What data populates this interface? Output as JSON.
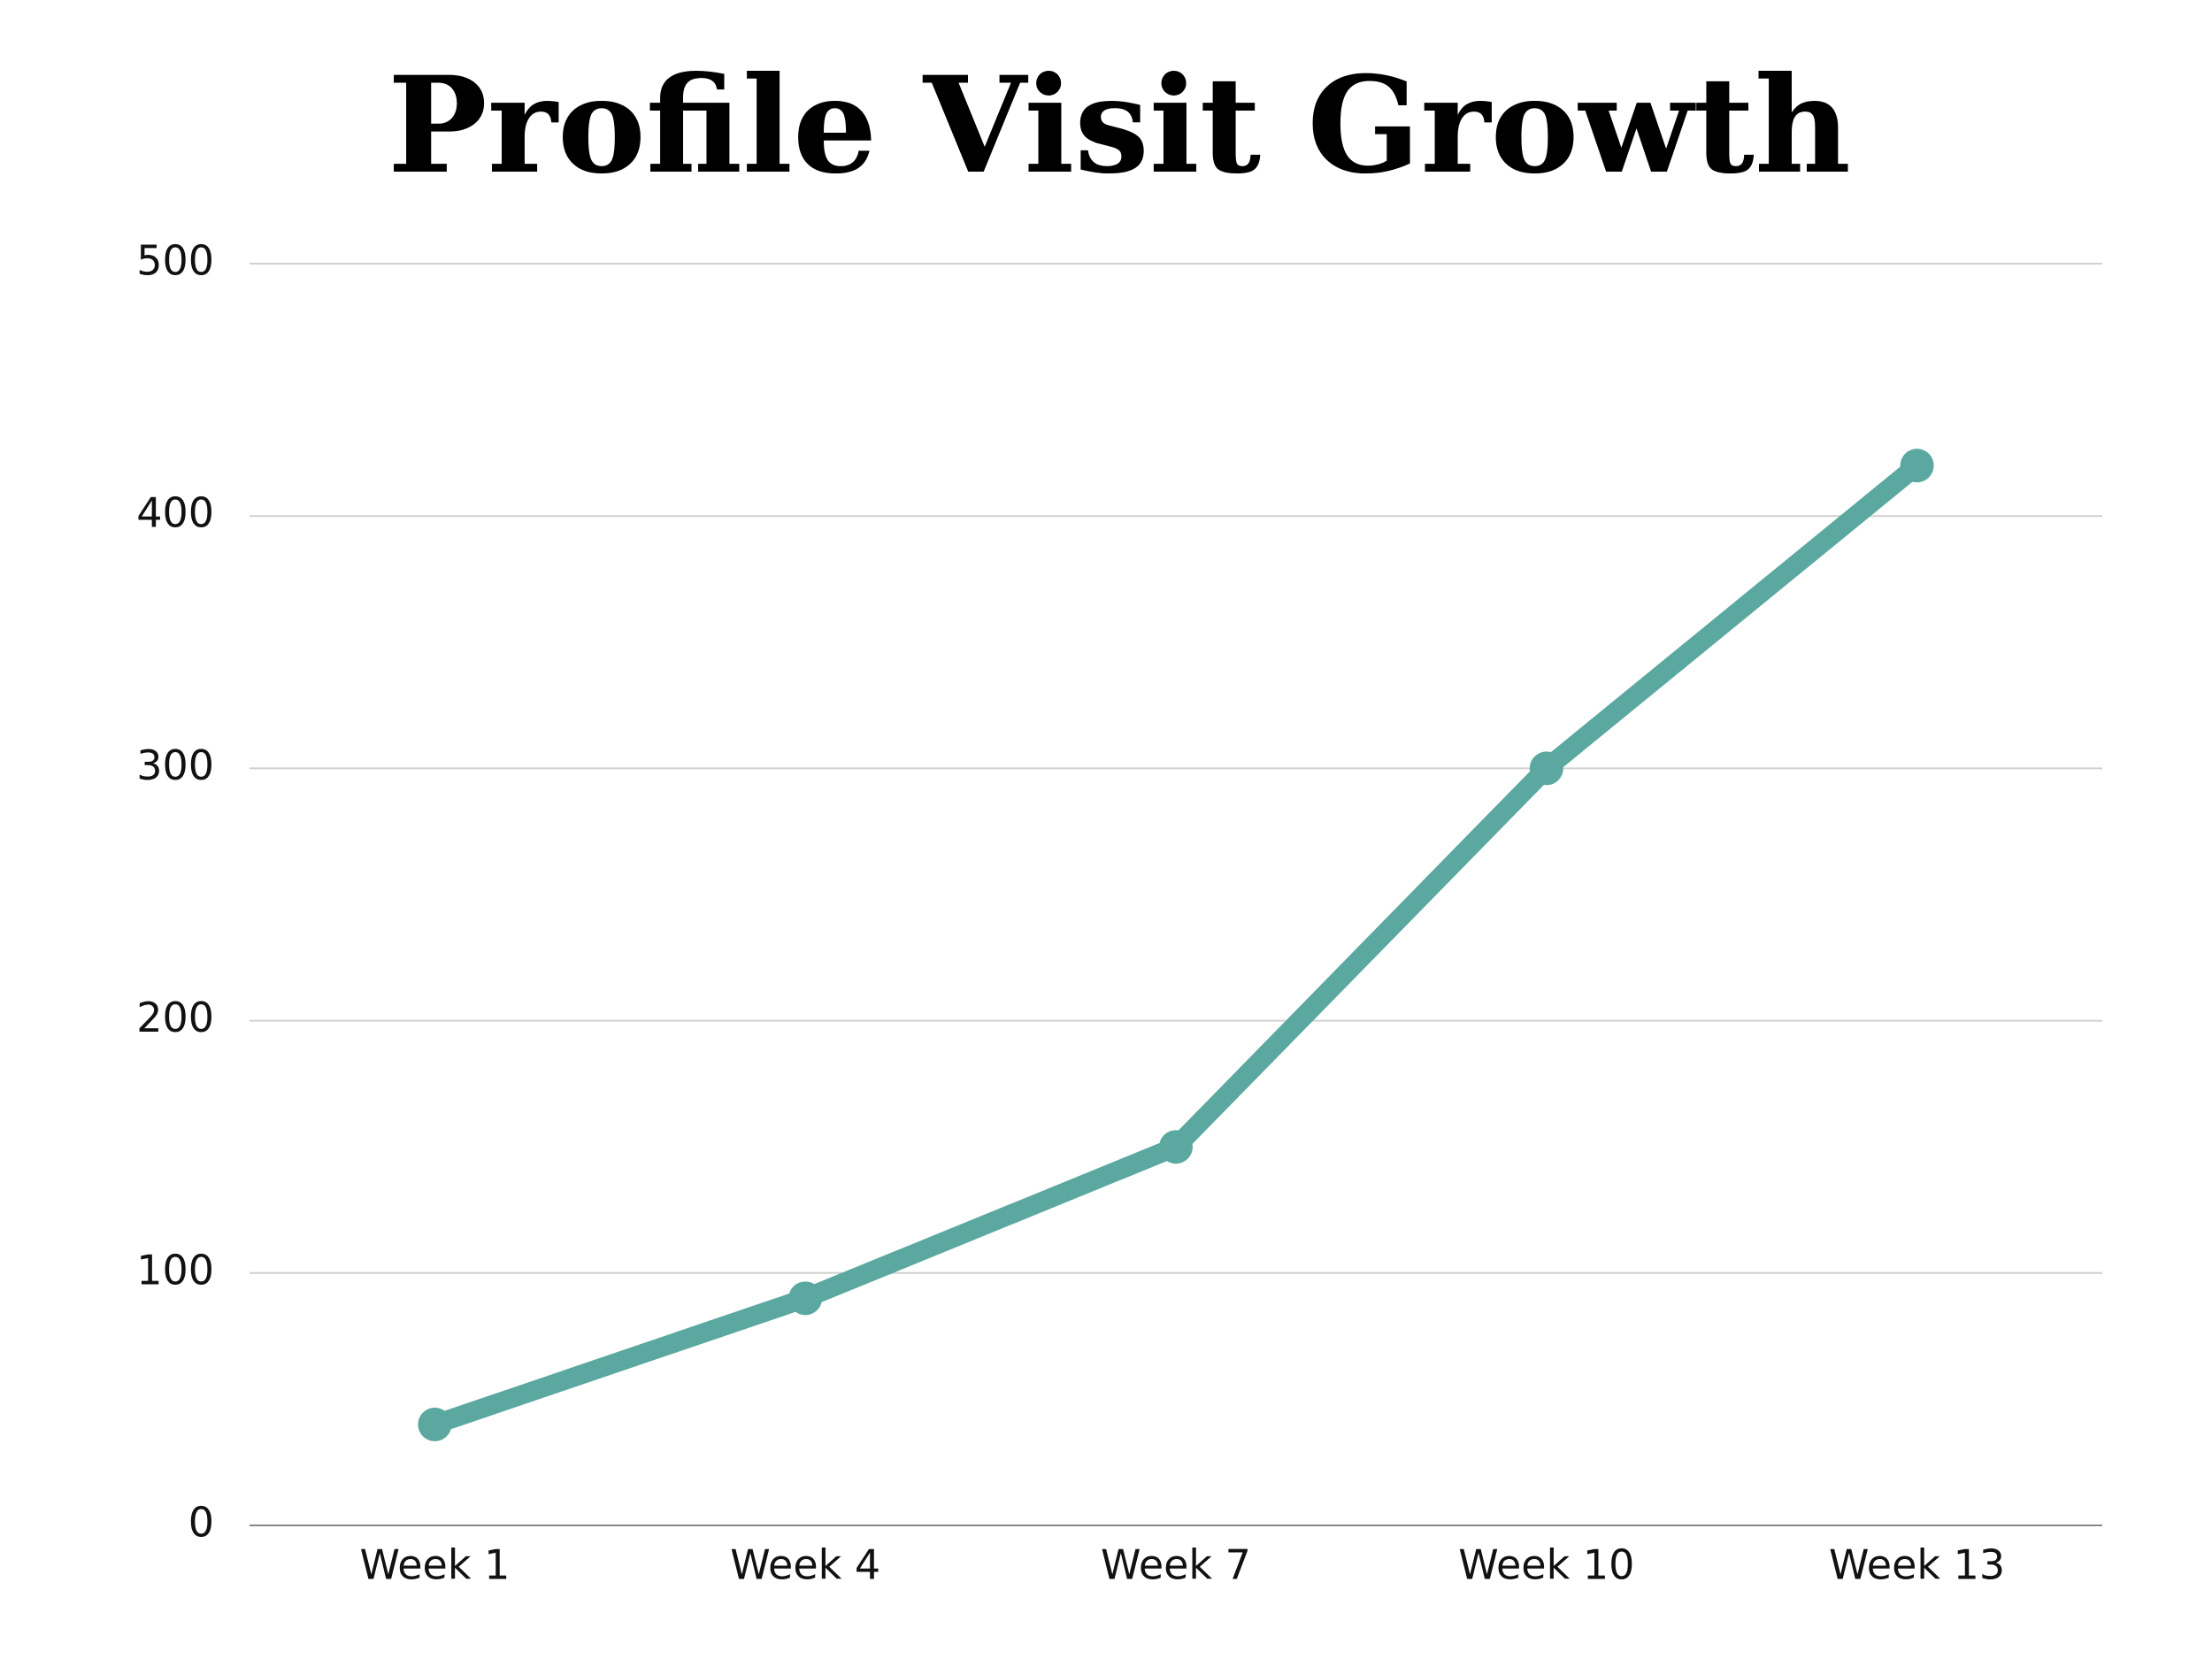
{
  "chart_data": {
    "type": "line",
    "title": "Profile Visit Growth",
    "categories": [
      "Week 1",
      "Week 4",
      "Week 7",
      "Week 10",
      "Week 13"
    ],
    "series": [
      {
        "values": [
          40,
          90,
          150,
          300,
          420
        ],
        "color": "#5ba8a0"
      }
    ],
    "ylim": [
      0,
      500
    ],
    "yticks": [
      0,
      100,
      200,
      300,
      400,
      500
    ],
    "grid": true
  }
}
